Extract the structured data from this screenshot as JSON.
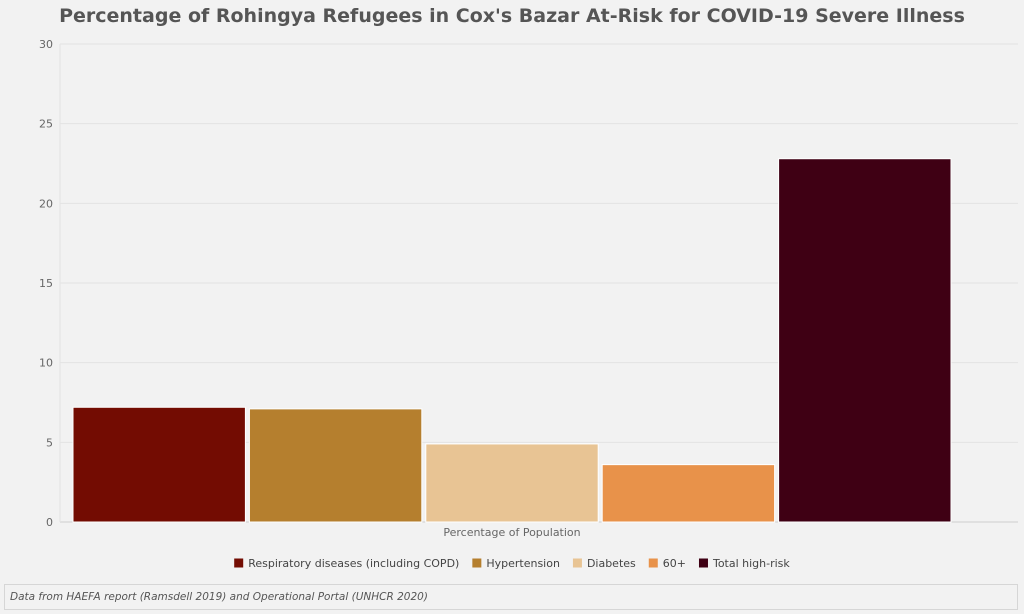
{
  "chart_data": {
    "type": "bar",
    "title": "Percentage of Rohingya Refugees in Cox's Bazar At-Risk for COVID-19 Severe Illness",
    "xlabel": "Percentage of Population",
    "ylabel": "",
    "ylim": [
      0,
      30
    ],
    "yticks": [
      "0",
      "5",
      "10",
      "15",
      "20",
      "25",
      "30"
    ],
    "grid": true,
    "legend_position": "bottom",
    "series": [
      {
        "name": "Respiratory diseases (including COPD)",
        "value": 7.2,
        "color": "#730c02"
      },
      {
        "name": "Hypertension",
        "value": 7.1,
        "color": "#b57f2e"
      },
      {
        "name": "Diabetes",
        "value": 4.9,
        "color": "#e8c494"
      },
      {
        "name": "60+",
        "value": 3.6,
        "color": "#e8924a"
      },
      {
        "name": "Total high-risk",
        "value": 22.8,
        "color": "#3f0014"
      }
    ]
  },
  "footer": {
    "source_note": "Data from HAEFA report (Ramsdell 2019) and Operational Portal (UNHCR 2020)"
  }
}
